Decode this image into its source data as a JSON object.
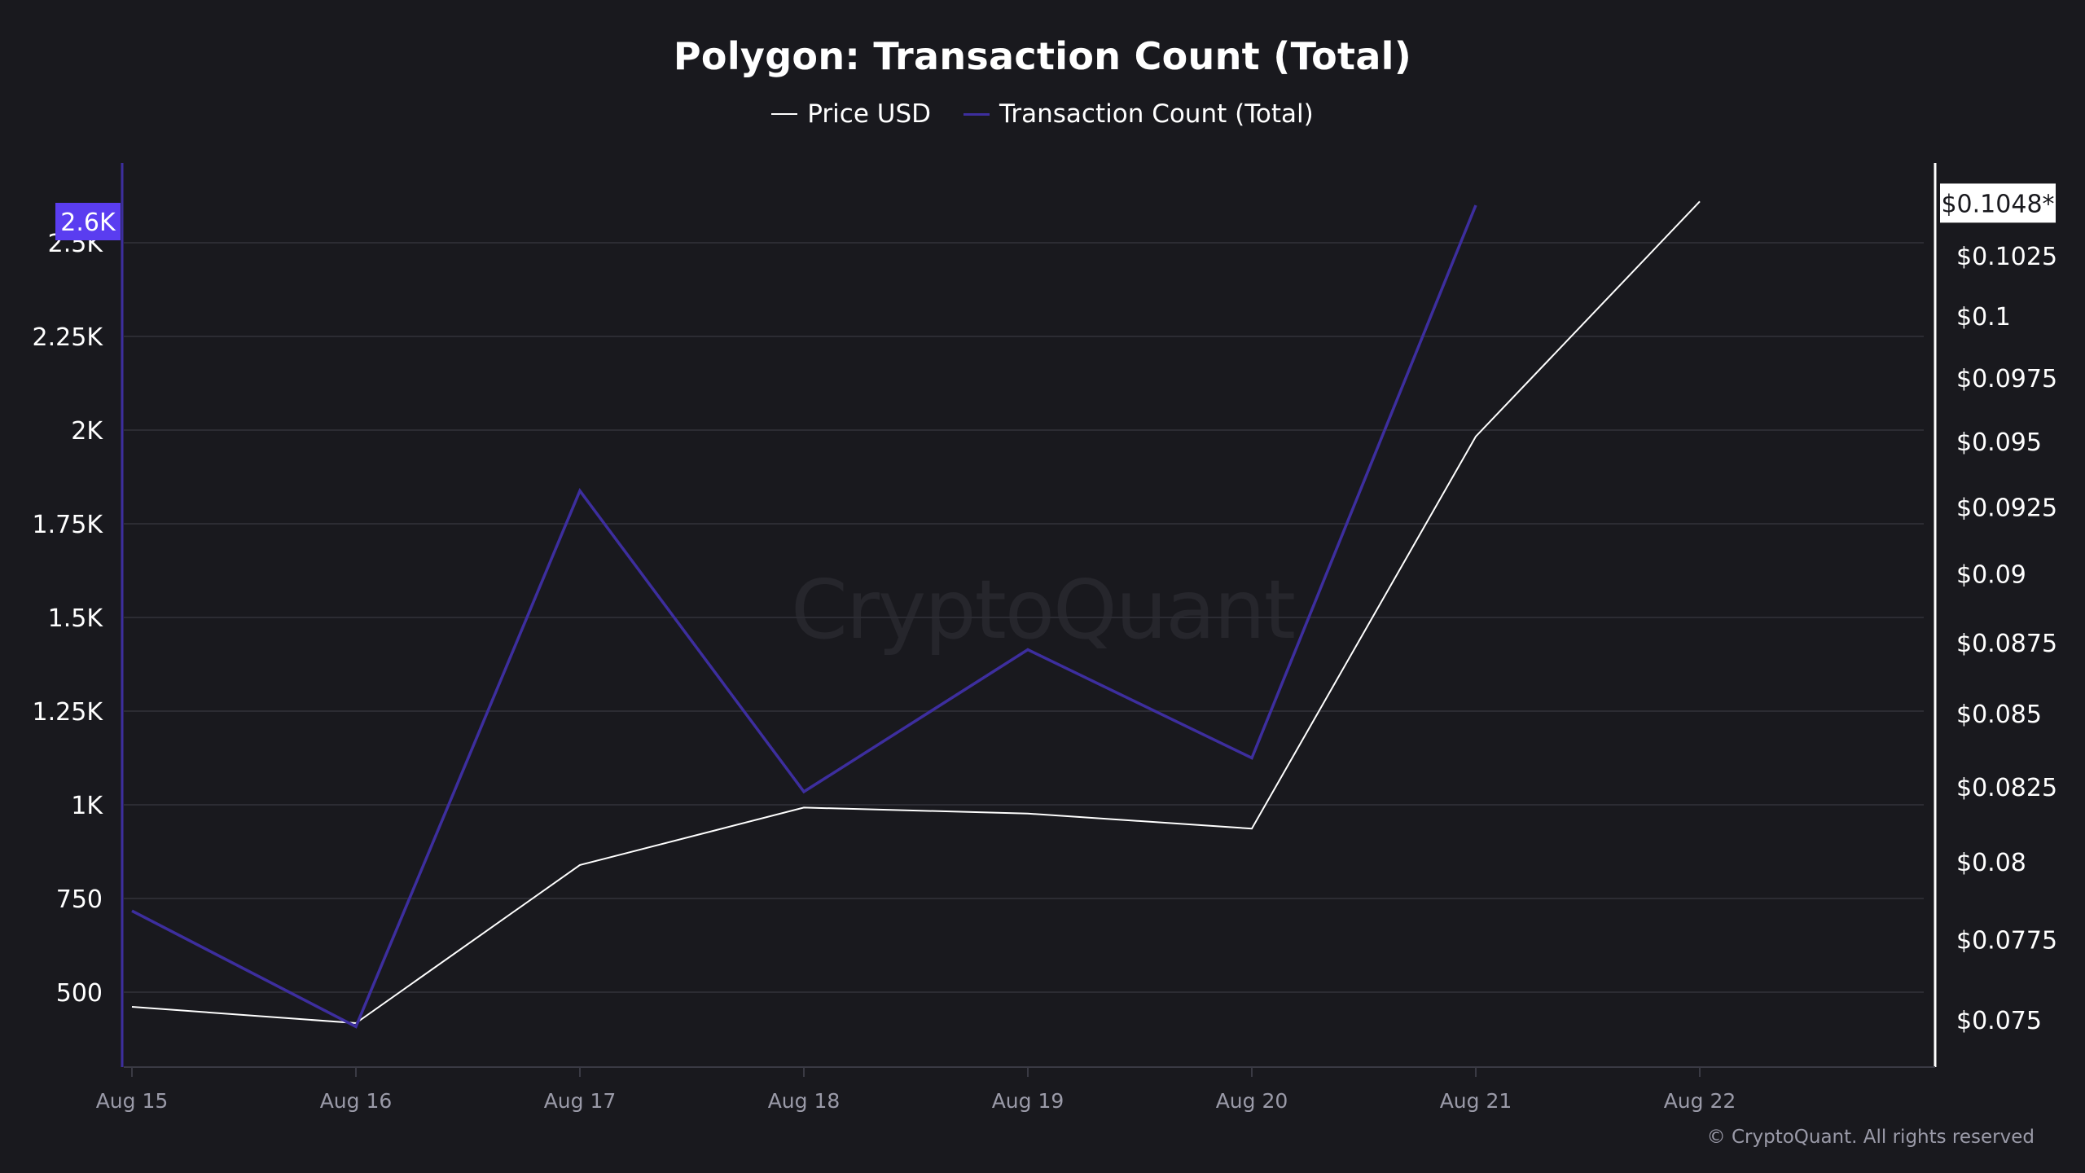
{
  "chart_data": {
    "type": "line",
    "title": "Polygon: Transaction Count (Total)",
    "categories": [
      "Aug 15",
      "Aug 16",
      "Aug 17",
      "Aug 18",
      "Aug 19",
      "Aug 20",
      "Aug 21",
      "Aug 22"
    ],
    "series": [
      {
        "name": "Price USD",
        "axis": "right",
        "color": "#ffffff",
        "values": [
          0.0754,
          0.0749,
          0.0799,
          0.0818,
          0.0816,
          0.0811,
          0.0952,
          0.1048
        ]
      },
      {
        "name": "Transaction Count (Total)",
        "axis": "left",
        "color": "#3d2e9e",
        "values": [
          717,
          408,
          1838,
          1035,
          1414,
          1125,
          2600,
          null
        ]
      }
    ],
    "left_axis": {
      "ticks": [
        500,
        750,
        1000,
        1250,
        1500,
        1750,
        2000,
        2250,
        2500
      ],
      "tick_labels": [
        "500",
        "750",
        "1K",
        "1.25K",
        "1.5K",
        "1.75K",
        "2K",
        "2.25K",
        "2.5K"
      ],
      "current_label": "2.6K",
      "current_value": 2600,
      "highlight_color": "#5a3df0"
    },
    "right_axis": {
      "ticks": [
        0.075,
        0.0775,
        0.08,
        0.0825,
        0.085,
        0.0875,
        0.09,
        0.0925,
        0.095,
        0.0975,
        0.1,
        0.1025
      ],
      "tick_labels": [
        "$0.075",
        "$0.0775",
        "$0.08",
        "$0.0825",
        "$0.085",
        "$0.0875",
        "$0.09",
        "$0.0925",
        "$0.095",
        "$0.0975",
        "$0.1",
        "$0.1025"
      ],
      "scale": "log",
      "current_label": "$0.1048*",
      "current_value": 0.1048
    },
    "legend_position": "top-center",
    "grid": true
  },
  "watermark": "CryptoQuant",
  "footer": "© CryptoQuant. All rights reserved"
}
